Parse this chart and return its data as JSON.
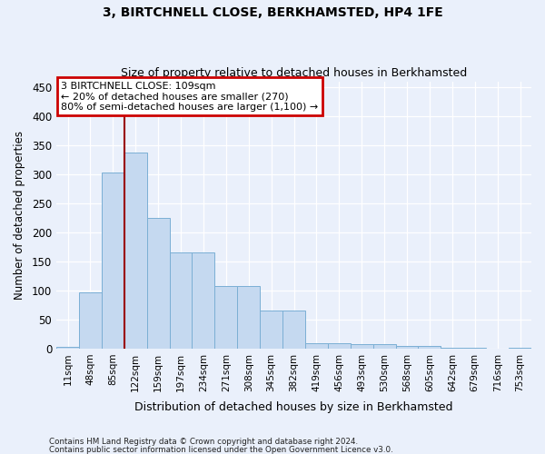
{
  "title": "3, BIRTCHNELL CLOSE, BERKHAMSTED, HP4 1FE",
  "subtitle": "Size of property relative to detached houses in Berkhamsted",
  "xlabel": "Distribution of detached houses by size in Berkhamsted",
  "ylabel": "Number of detached properties",
  "categories": [
    "11sqm",
    "48sqm",
    "85sqm",
    "122sqm",
    "159sqm",
    "197sqm",
    "234sqm",
    "271sqm",
    "308sqm",
    "345sqm",
    "382sqm",
    "419sqm",
    "456sqm",
    "493sqm",
    "530sqm",
    "568sqm",
    "605sqm",
    "642sqm",
    "679sqm",
    "716sqm",
    "753sqm"
  ],
  "values": [
    3,
    97,
    303,
    337,
    225,
    165,
    165,
    108,
    108,
    65,
    65,
    10,
    10,
    8,
    8,
    5,
    5,
    1,
    1,
    0,
    2
  ],
  "bar_color": "#c5d9f0",
  "bar_edge_color": "#7bafd4",
  "vline_color": "#990000",
  "vline_x": 2.5,
  "annotation_text": "3 BIRTCHNELL CLOSE: 109sqm\n← 20% of detached houses are smaller (270)\n80% of semi-detached houses are larger (1,100) →",
  "annotation_box_facecolor": "#ffffff",
  "annotation_box_edgecolor": "#cc0000",
  "footer1": "Contains HM Land Registry data © Crown copyright and database right 2024.",
  "footer2": "Contains public sector information licensed under the Open Government Licence v3.0.",
  "ylim": [
    0,
    460
  ],
  "yticks": [
    0,
    50,
    100,
    150,
    200,
    250,
    300,
    350,
    400,
    450
  ],
  "bg_color": "#eaf0fb",
  "grid_color": "#d0d8ee",
  "title_fontsize": 10,
  "subtitle_fontsize": 9
}
